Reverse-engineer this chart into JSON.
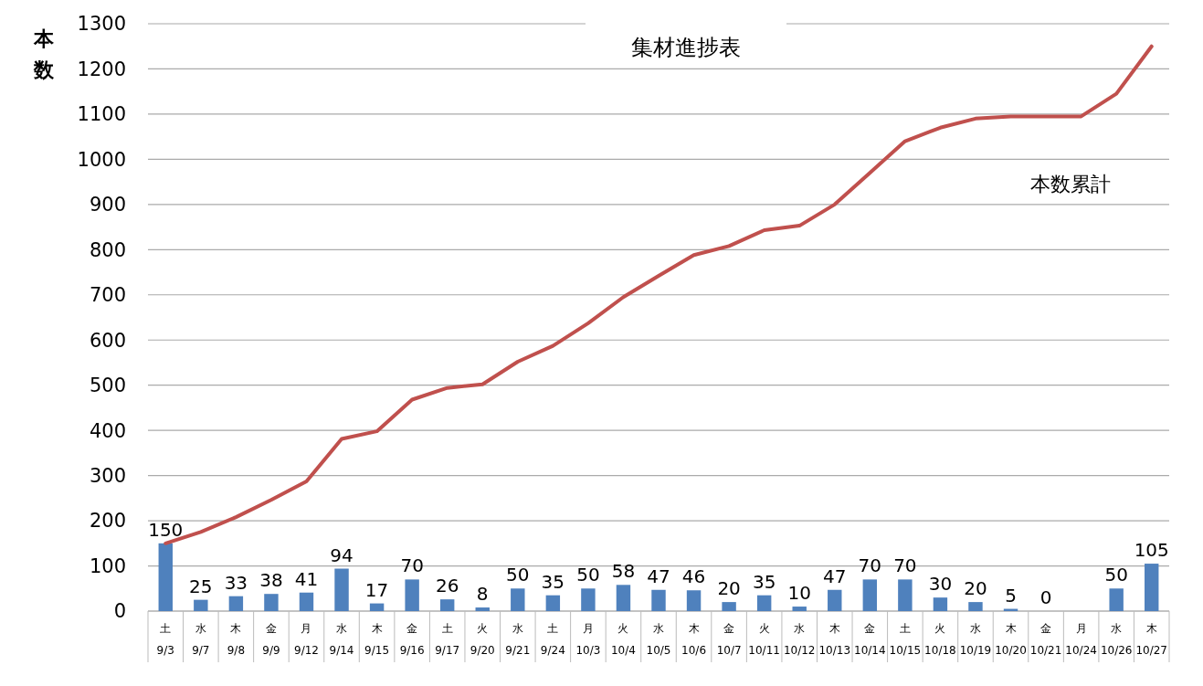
{
  "chart_data": {
    "type": "bar",
    "title": "集材進捗表",
    "ylabel": "本数",
    "categories": [
      "土\n9/3",
      "水\n9/7",
      "木\n9/8",
      "金\n9/9",
      "月\n9/12",
      "水\n9/14",
      "木\n9/15",
      "金\n9/16",
      "土\n9/17",
      "火\n9/20",
      "水\n9/21",
      "土\n9/24",
      "月\n10/3",
      "火\n10/4",
      "水\n10/5",
      "木\n10/6",
      "金\n10/7",
      "火\n10/11",
      "水\n10/12",
      "木\n10/13",
      "金\n10/14",
      "土\n10/15",
      "火\n10/18",
      "水\n10/19",
      "木\n10/20",
      "金\n10/21",
      "月\n10/24",
      "水\n10/26",
      "木\n10/27"
    ],
    "series": [
      {
        "color": "#4f81bd",
        "values": [
          150,
          25,
          33,
          38,
          41,
          94,
          17,
          70,
          26,
          8,
          50,
          35,
          50,
          58,
          47,
          46,
          20,
          35,
          10,
          47,
          70,
          70,
          30,
          20,
          5,
          0,
          0,
          50,
          105
        ],
        "value_labels": [
          "150",
          "25",
          "33",
          "38",
          "41",
          "94",
          "17",
          "70",
          "26",
          "8",
          "50",
          "35",
          "50",
          "58",
          "47",
          "46",
          "20",
          "35",
          "10",
          "47",
          "70",
          "70",
          "30",
          "20",
          "5",
          "0",
          null,
          "50",
          "105"
        ]
      },
      {
        "type": "line",
        "name": "本数累計",
        "color": "#c0504d",
        "values": [
          150,
          175,
          208,
          246,
          287,
          381,
          398,
          468,
          494,
          502,
          552,
          587,
          637,
          695,
          742,
          788,
          808,
          843,
          853,
          900,
          970,
          1040,
          1070,
          1090,
          1095,
          1095,
          1095,
          1145,
          1250
        ]
      }
    ],
    "ylim": [
      0,
      1300
    ],
    "yticks": [
      0,
      100,
      200,
      300,
      400,
      500,
      600,
      700,
      800,
      900,
      1000,
      1100,
      1200,
      1300
    ],
    "grid": "y",
    "marker": "none",
    "line_style": "solid"
  }
}
